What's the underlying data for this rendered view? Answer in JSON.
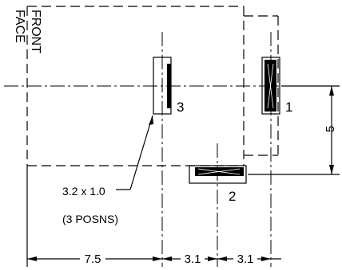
{
  "diagram": {
    "front_face_label": [
      "FRONT",
      "FACE"
    ],
    "positions": [
      {
        "id": "3",
        "label": "3"
      },
      {
        "id": "1",
        "label": "1"
      },
      {
        "id": "2",
        "label": "2"
      }
    ],
    "note": {
      "size": "3.2 x 1.0",
      "posns": "(3 POSNS)"
    },
    "dimensions": {
      "front_to_pos3": "7.5",
      "pos3_to_pos2": "3.1",
      "pos2_to_pos1": "3.1",
      "vertical_offset": "5"
    }
  }
}
